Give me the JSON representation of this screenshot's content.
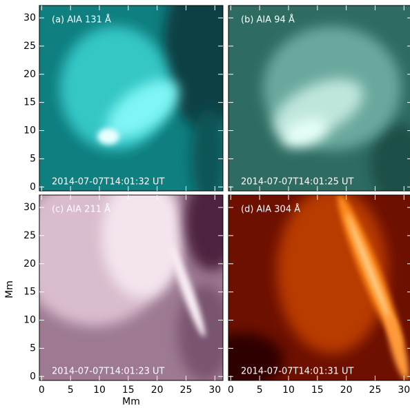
{
  "figure": {
    "panels": [
      {
        "label": "(a) AIA 131 Å",
        "time": "2014-07-07T14:01:32 UT"
      },
      {
        "label": "(b) AIA 94 Å",
        "time": "2014-07-07T14:01:25 UT"
      },
      {
        "label": "(c) AIA 211 Å",
        "time": "2014-07-07T14:01:23 UT"
      },
      {
        "label": "(d) AIA 304 Å",
        "time": "2014-07-07T14:01:31 UT"
      }
    ],
    "x_axis_label": "Mm",
    "y_axis_label": "Mm",
    "xlim": [
      -0.4,
      31.4
    ],
    "ylim": [
      -0.7,
      32.2
    ],
    "xticks": [
      0,
      5,
      10,
      15,
      20,
      25,
      30
    ],
    "yticks": [
      0,
      5,
      10,
      15,
      20,
      25,
      30
    ]
  }
}
